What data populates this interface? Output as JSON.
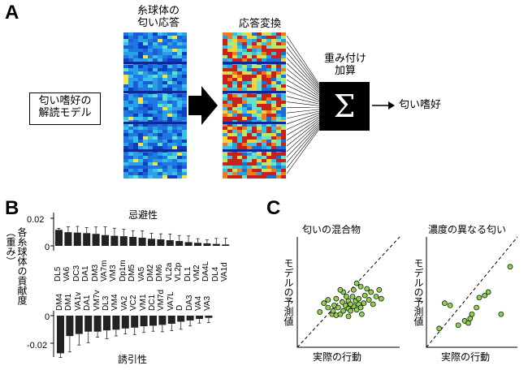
{
  "panels": {
    "A": "A",
    "B": "B",
    "C": "C"
  },
  "panelA": {
    "glomerular_title_1": "糸球体の",
    "glomerular_title_2": "匂い応答",
    "transform_title": "応答変換",
    "model_box_1": "匂い嗜好の",
    "model_box_2": "解読モデル",
    "sum_label_1": "重み付け",
    "sum_label_2": "加算",
    "sum_symbol": "Σ",
    "output_label": "匂い嗜好"
  },
  "panelB": {
    "ylabel_1": "各糸球体の貢献度",
    "ylabel_2": "（重み）",
    "ticks": [
      "0.02",
      "0",
      "0",
      "-0.02"
    ],
    "aversive_label": "忌避性",
    "attractive_label": "誘引性",
    "chart_data": {
      "type": "bar",
      "ylabel": "各糸球体の貢献度（重み）",
      "groups": [
        {
          "name": "忌避性",
          "categories": [
            "DL5",
            "VA6",
            "DC3",
            "DA1",
            "DM3",
            "VA7m",
            "VM3",
            "Dp1m",
            "DM5",
            "VA5",
            "DM2",
            "DM6",
            "VL2a",
            "VL2p",
            "DL1",
            "VM2",
            "DA4L",
            "DL4",
            "VA1d"
          ],
          "values": [
            0.0116,
            0.0099,
            0.0096,
            0.0092,
            0.0087,
            0.0078,
            0.0073,
            0.007,
            0.0065,
            0.0059,
            0.0051,
            0.0047,
            0.0041,
            0.0035,
            0.0027,
            0.0022,
            0.0018,
            0.0014,
            0.001
          ],
          "errors": [
            0.001,
            0.004,
            0.0045,
            0.004,
            0.005,
            0.006,
            0.0055,
            0.005,
            0.0045,
            0.005,
            0.004,
            0.004,
            0.0045,
            0.004,
            0.0045,
            0.003,
            0.0025,
            0.004,
            0.0045
          ]
        },
        {
          "name": "誘引性",
          "categories": [
            "DM4",
            "DM1",
            "VA1v",
            "DA1",
            "VM7v",
            "DL3",
            "VM4",
            "VA2",
            "VC2",
            "VM1",
            "DC1",
            "VM7d",
            "VA7L",
            "D",
            "DA3",
            "VA4",
            "VA3"
          ],
          "values": [
            -0.0273,
            -0.0148,
            -0.0133,
            -0.0116,
            -0.0116,
            -0.0107,
            -0.0102,
            -0.0093,
            -0.0087,
            -0.0077,
            -0.0073,
            -0.0067,
            -0.0059,
            -0.0044,
            -0.0035,
            -0.0024,
            -0.0016
          ],
          "errors": [
            0.003,
            0.0115,
            0.008,
            0.008,
            0.004,
            0.006,
            0.0045,
            0.004,
            0.005,
            0.0045,
            0.004,
            0.005,
            0.005,
            0.0055,
            0.004,
            0.003,
            0.0035
          ]
        }
      ],
      "ylim": [
        -0.03,
        0.03
      ]
    }
  },
  "panelC": {
    "left_title": "匂いの混合物",
    "right_title": "濃度の異なる匂い",
    "xlabel": "実際の行動",
    "ylabel": "モデルの予測値",
    "chart_data": [
      {
        "type": "scatter",
        "title": "匂いの混合物",
        "xlabel": "実際の行動",
        "ylabel": "モデルの予測値",
        "xlim": [
          0,
          1
        ],
        "ylim": [
          0,
          1
        ],
        "diagonal": true,
        "color": "#8fd14f",
        "points": [
          [
            0.22,
            0.32
          ],
          [
            0.3,
            0.36
          ],
          [
            0.34,
            0.3
          ],
          [
            0.38,
            0.29
          ],
          [
            0.42,
            0.3
          ],
          [
            0.45,
            0.33
          ],
          [
            0.4,
            0.36
          ],
          [
            0.47,
            0.38
          ],
          [
            0.5,
            0.35
          ],
          [
            0.52,
            0.33
          ],
          [
            0.55,
            0.37
          ],
          [
            0.58,
            0.34
          ],
          [
            0.6,
            0.39
          ],
          [
            0.62,
            0.36
          ],
          [
            0.65,
            0.4
          ],
          [
            0.57,
            0.42
          ],
          [
            0.5,
            0.42
          ],
          [
            0.44,
            0.41
          ],
          [
            0.38,
            0.44
          ],
          [
            0.48,
            0.46
          ],
          [
            0.54,
            0.46
          ],
          [
            0.6,
            0.44
          ],
          [
            0.66,
            0.47
          ],
          [
            0.7,
            0.43
          ],
          [
            0.72,
            0.5
          ],
          [
            0.68,
            0.53
          ],
          [
            0.62,
            0.55
          ],
          [
            0.55,
            0.52
          ],
          [
            0.45,
            0.5
          ],
          [
            0.36,
            0.38
          ],
          [
            0.3,
            0.43
          ],
          [
            0.26,
            0.4
          ],
          [
            0.74,
            0.39
          ],
          [
            0.77,
            0.46
          ],
          [
            0.8,
            0.52
          ],
          [
            0.82,
            0.44
          ],
          [
            0.63,
            0.3
          ],
          [
            0.5,
            0.28
          ],
          [
            0.42,
            0.52
          ],
          [
            0.58,
            0.58
          ],
          [
            0.35,
            0.33
          ],
          [
            0.52,
            0.39
          ]
        ]
      },
      {
        "type": "scatter",
        "title": "濃度の異なる匂い",
        "xlabel": "実際の行動",
        "ylabel": "モデルの予測値",
        "xlim": [
          0,
          1
        ],
        "ylim": [
          0,
          1
        ],
        "diagonal": true,
        "color": "#8fd14f",
        "points": [
          [
            0.14,
            0.17
          ],
          [
            0.2,
            0.4
          ],
          [
            0.26,
            0.38
          ],
          [
            0.35,
            0.2
          ],
          [
            0.42,
            0.24
          ],
          [
            0.46,
            0.22
          ],
          [
            0.48,
            0.26
          ],
          [
            0.5,
            0.3
          ],
          [
            0.55,
            0.36
          ],
          [
            0.58,
            0.45
          ],
          [
            0.64,
            0.47
          ],
          [
            0.68,
            0.5
          ],
          [
            0.82,
            0.3
          ],
          [
            0.92,
            0.73
          ]
        ]
      }
    ]
  }
}
